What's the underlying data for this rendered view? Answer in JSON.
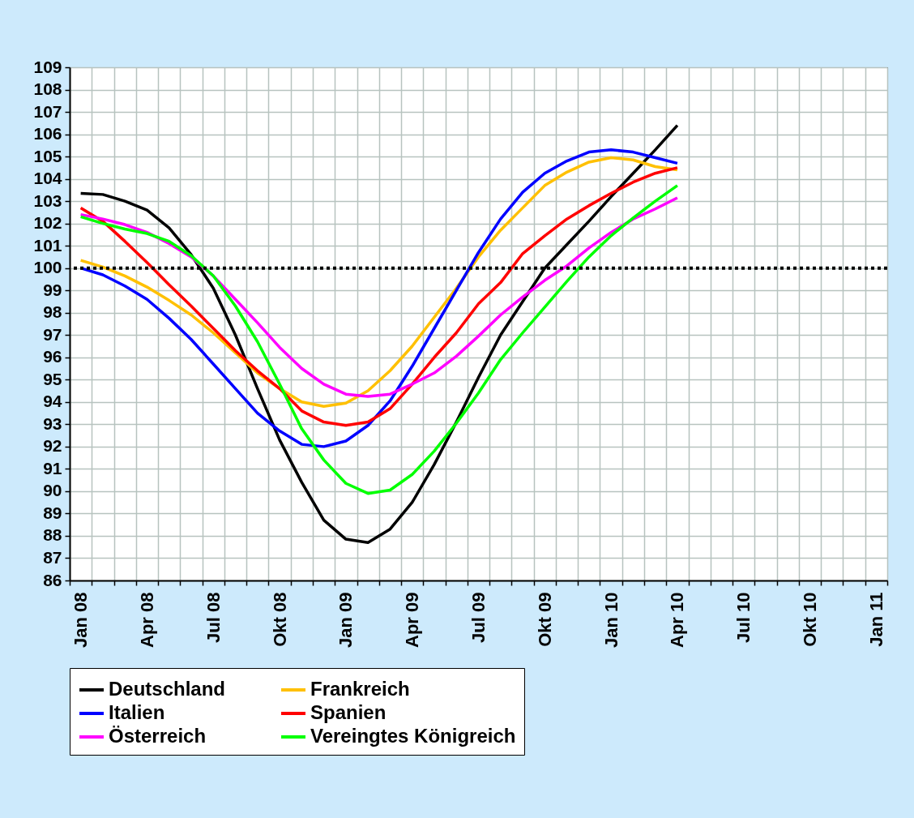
{
  "chart_data": {
    "type": "line",
    "categories": [
      "Jan 08",
      null,
      null,
      "Apr 08",
      null,
      null,
      "Jul 08",
      null,
      null,
      "Okt 08",
      null,
      null,
      "Jan 09",
      null,
      null,
      "Apr 09",
      null,
      null,
      "Jul 09",
      null,
      null,
      "Okt 09",
      null,
      null,
      "Jan 10",
      null,
      null,
      "Apr 10",
      null,
      null,
      "Jul 10",
      null,
      null,
      "Okt 10",
      null,
      null,
      "Jan 11"
    ],
    "series": [
      {
        "name": "Deutschland",
        "color": "#000000",
        "values": [
          103.35,
          103.3,
          103.0,
          102.6,
          101.8,
          100.6,
          99.1,
          97.0,
          94.6,
          92.3,
          90.4,
          88.7,
          87.85,
          87.7,
          88.3,
          89.5,
          91.2,
          93.1,
          95.1,
          97.0,
          98.5,
          100.0,
          101.05,
          102.1,
          103.2,
          104.25,
          105.3,
          106.4,
          null,
          null,
          null,
          null,
          null,
          null,
          null,
          null,
          null
        ]
      },
      {
        "name": "Frankreich",
        "color": "#ffc000",
        "values": [
          100.35,
          100.05,
          99.65,
          99.15,
          98.55,
          97.9,
          97.1,
          96.2,
          95.3,
          94.6,
          94.0,
          93.8,
          93.95,
          94.5,
          95.4,
          96.5,
          97.8,
          99.1,
          100.5,
          101.7,
          102.7,
          103.7,
          104.3,
          104.75,
          104.95,
          104.85,
          104.55,
          104.4,
          null,
          null,
          null,
          null,
          null,
          null,
          null,
          null,
          null
        ]
      },
      {
        "name": "Italien",
        "color": "#0000ff",
        "values": [
          100.0,
          99.7,
          99.2,
          98.6,
          97.75,
          96.8,
          95.7,
          94.6,
          93.5,
          92.7,
          92.1,
          92.0,
          92.25,
          92.95,
          94.05,
          95.6,
          97.3,
          99.0,
          100.7,
          102.2,
          103.4,
          104.25,
          104.8,
          105.2,
          105.3,
          105.2,
          104.95,
          104.7,
          null,
          null,
          null,
          null,
          null,
          null,
          null,
          null,
          null
        ]
      },
      {
        "name": "Spanien",
        "color": "#ff0000",
        "values": [
          102.7,
          102.1,
          101.2,
          100.25,
          99.25,
          98.3,
          97.3,
          96.3,
          95.4,
          94.6,
          93.6,
          93.1,
          92.95,
          93.1,
          93.7,
          94.8,
          96.0,
          97.1,
          98.4,
          99.35,
          100.65,
          101.45,
          102.2,
          102.8,
          103.35,
          103.85,
          104.25,
          104.5,
          null,
          null,
          null,
          null,
          null,
          null,
          null,
          null,
          null
        ]
      },
      {
        "name": "Österreich",
        "color": "#ff00ff",
        "values": [
          102.4,
          102.2,
          101.95,
          101.6,
          101.1,
          100.5,
          99.65,
          98.6,
          97.55,
          96.45,
          95.5,
          94.8,
          94.35,
          94.25,
          94.35,
          94.8,
          95.3,
          96.05,
          96.95,
          97.9,
          98.7,
          99.45,
          100.1,
          100.9,
          101.6,
          102.2,
          102.65,
          103.15,
          null,
          null,
          null,
          null,
          null,
          null,
          null,
          null,
          null
        ]
      },
      {
        "name": "Vereingtes Königreich",
        "color": "#00ff00",
        "values": [
          102.3,
          102.0,
          101.75,
          101.55,
          101.2,
          100.55,
          99.65,
          98.3,
          96.7,
          94.8,
          92.8,
          91.4,
          90.35,
          89.9,
          90.05,
          90.75,
          91.8,
          93.05,
          94.4,
          95.9,
          97.1,
          98.25,
          99.4,
          100.5,
          101.45,
          102.25,
          103.0,
          103.7,
          null,
          null,
          null,
          null,
          null,
          null,
          null,
          null,
          null
        ]
      }
    ],
    "ylim": [
      86,
      109
    ],
    "yticks": [
      86,
      87,
      88,
      89,
      90,
      91,
      92,
      93,
      94,
      95,
      96,
      97,
      98,
      99,
      100,
      101,
      102,
      103,
      104,
      105,
      106,
      107,
      108,
      109
    ],
    "grid": true,
    "legend": "bottom",
    "line_style": "solid",
    "ref_lines": [
      {
        "axis": "y",
        "value": 100,
        "color": "#000000",
        "line_style": "dotted"
      }
    ]
  }
}
